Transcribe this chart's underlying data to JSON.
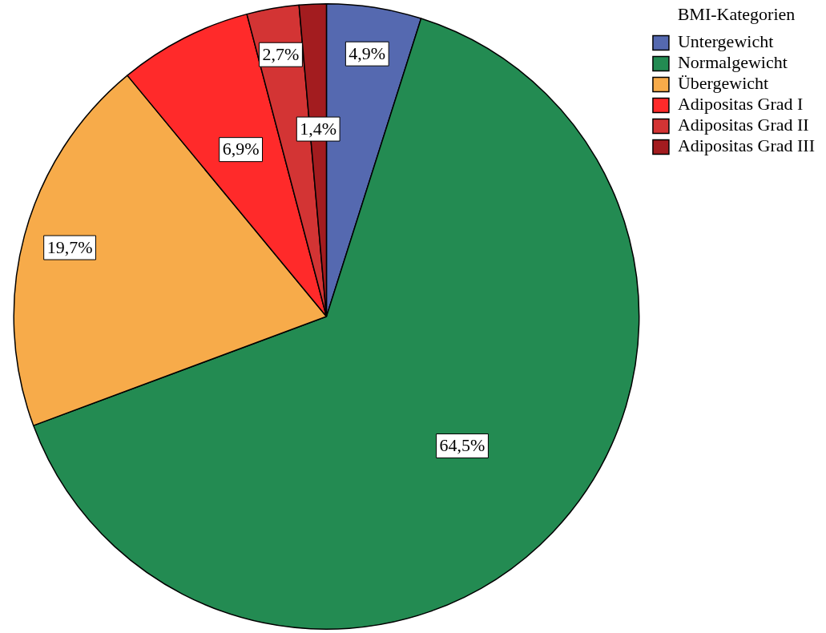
{
  "chart_data": {
    "type": "pie",
    "legend_title": "BMI-Kategorien",
    "legend": "top right",
    "categories": [
      "Untergewicht",
      "Normalgewicht",
      "Übergewicht",
      "Adipositas Grad I",
      "Adipositas Grad II",
      "Adipositas Grad III"
    ],
    "values": [
      4.9,
      64.5,
      19.7,
      6.9,
      2.7,
      1.4
    ],
    "value_labels": [
      "4,9%",
      "64,5%",
      "19,7%",
      "6,9%",
      "2,7%",
      "1,4%"
    ],
    "colors": [
      "#5569b0",
      "#238b52",
      "#f7ab4a",
      "#ff2a2a",
      "#d33434",
      "#a31c1f"
    ]
  }
}
